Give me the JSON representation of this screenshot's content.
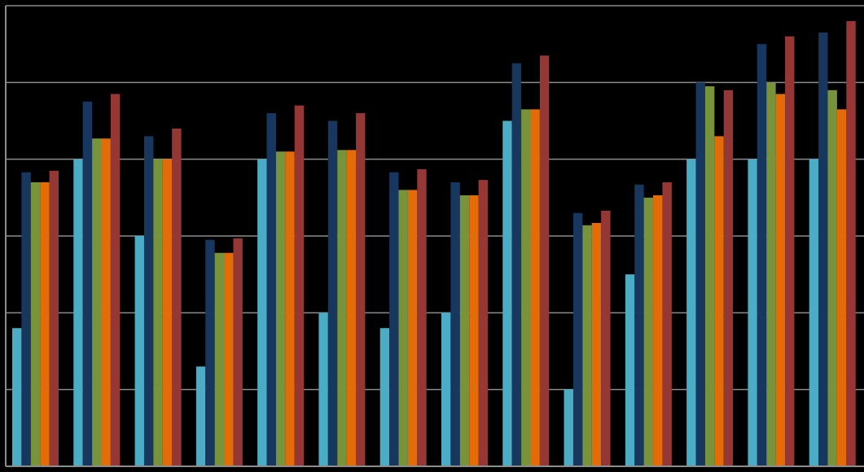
{
  "chart_data": {
    "type": "bar",
    "title": "",
    "xlabel": "",
    "ylabel": "",
    "ylim": [
      0,
      6
    ],
    "grid": true,
    "legend": "none",
    "categories": [
      "",
      "",
      "",
      "",
      "",
      "",
      "",
      "",
      "",
      "",
      "",
      "",
      "",
      ""
    ],
    "series": [
      {
        "color": "#4BACC6",
        "values": [
          1.8,
          4.0,
          3.0,
          1.3,
          4.0,
          2.0,
          1.8,
          2.0,
          4.5,
          1.0,
          2.5,
          4.0,
          4.0,
          4.0
        ]
      },
      {
        "color": "#17375E",
        "values": [
          3.83,
          4.75,
          4.3,
          2.95,
          4.6,
          4.5,
          3.83,
          3.7,
          5.25,
          3.3,
          3.67,
          5.0,
          5.5,
          5.65
        ]
      },
      {
        "color": "#77933C",
        "values": [
          3.7,
          4.27,
          4.0,
          2.78,
          4.1,
          4.12,
          3.6,
          3.53,
          4.65,
          3.14,
          3.5,
          4.95,
          5.0,
          4.9
        ]
      },
      {
        "color": "#E36C09",
        "values": [
          3.7,
          4.27,
          4.0,
          2.78,
          4.1,
          4.12,
          3.6,
          3.53,
          4.65,
          3.17,
          3.53,
          4.3,
          4.85,
          4.65
        ]
      },
      {
        "color": "#953735",
        "values": [
          3.85,
          4.85,
          4.4,
          2.97,
          4.7,
          4.6,
          3.87,
          3.73,
          5.35,
          3.33,
          3.7,
          4.9,
          5.6,
          5.8
        ]
      }
    ]
  }
}
